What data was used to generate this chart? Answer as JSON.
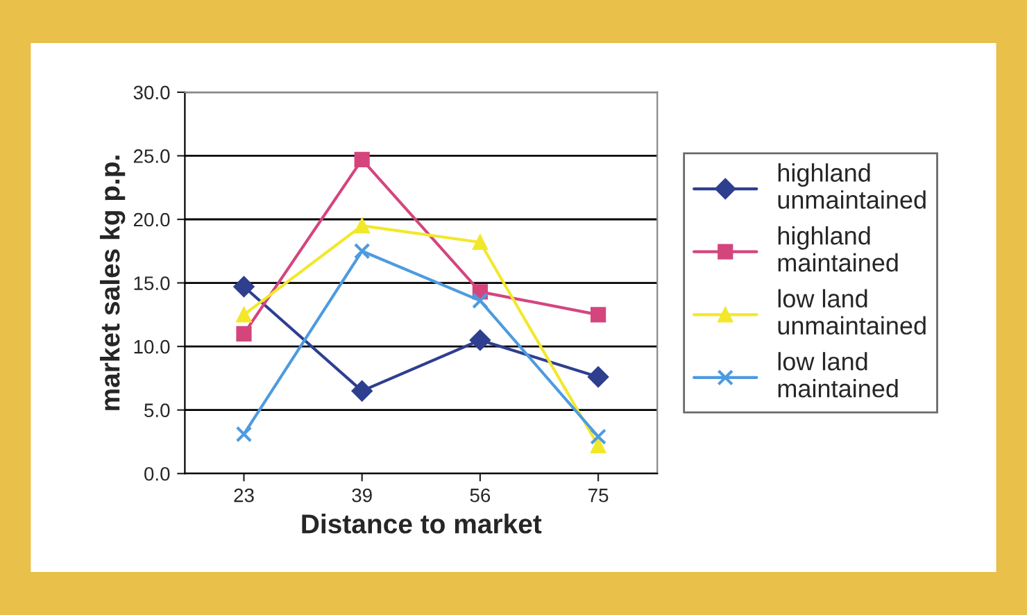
{
  "chart_data": {
    "type": "line",
    "xlabel": "Distance to market",
    "ylabel": "market sales kg p.p.",
    "categories": [
      "23",
      "39",
      "56",
      "75"
    ],
    "series": [
      {
        "name": "highland\nunmaintained",
        "color": "#2e3f8f",
        "marker": "diamond",
        "values": [
          14.7,
          6.5,
          10.5,
          7.6
        ]
      },
      {
        "name": "highland\nmaintained",
        "color": "#d4457e",
        "marker": "square",
        "values": [
          11.0,
          24.7,
          14.3,
          12.5
        ]
      },
      {
        "name": "low land\nunmaintained",
        "color": "#f2e82a",
        "marker": "triangle",
        "values": [
          12.5,
          19.5,
          18.2,
          2.2
        ]
      },
      {
        "name": "low land\nmaintained",
        "color": "#4d9be0",
        "marker": "cross",
        "values": [
          3.1,
          17.5,
          13.6,
          2.9
        ]
      }
    ],
    "ylim": [
      0,
      30
    ],
    "yticks": [
      {
        "value": 0,
        "label": "0.0"
      },
      {
        "value": 5,
        "label": "5.0"
      },
      {
        "value": 10,
        "label": "10.0"
      },
      {
        "value": 15,
        "label": "15.0"
      },
      {
        "value": 20,
        "label": "20.0"
      },
      {
        "value": 25,
        "label": "25.0"
      },
      {
        "value": 30,
        "label": "30.0"
      }
    ],
    "grid": "y",
    "legend": "right",
    "line_style": "solid"
  }
}
